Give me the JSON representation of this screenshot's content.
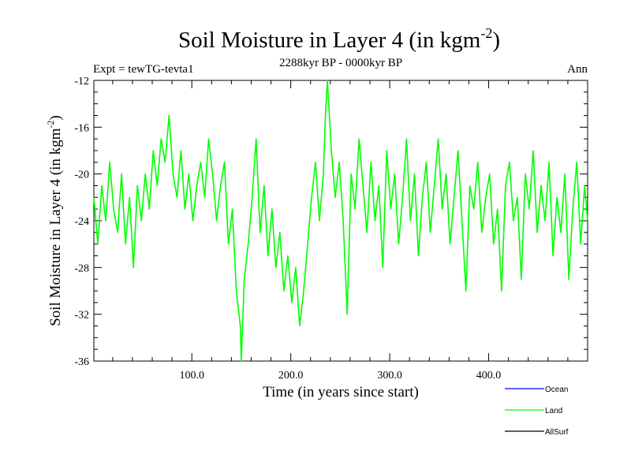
{
  "chart_data": {
    "type": "line",
    "title_main": "Soil Moisture in Layer 4 (in kgm",
    "title_sup": "-2",
    "title_close": ")",
    "subtitle_left": "Expt = tewTG-tevta1",
    "subtitle_center": "2288kyr BP - 0000kyr BP",
    "subtitle_right": "Ann",
    "xlabel": "Time (in years since start)",
    "ylabel_main": "Soil Moisture in Layer 4 (in kgm",
    "ylabel_sup": "-2",
    "ylabel_close": ")",
    "xlim": [
      1,
      500
    ],
    "ylim": [
      -36,
      -12
    ],
    "x_ticks": [
      100,
      200,
      300,
      400
    ],
    "x_tick_labels": [
      "100.0",
      "200.0",
      "300.0",
      "400.0"
    ],
    "y_ticks": [
      -12,
      -16,
      -20,
      -24,
      -28,
      -32,
      -36
    ],
    "y_tick_labels": [
      "-12",
      "-16",
      "-20",
      "-24",
      "-28",
      "-32",
      "-36"
    ],
    "legend": [
      {
        "name": "Ocean",
        "color": "#0000ff"
      },
      {
        "name": "Land",
        "color": "#00ff00"
      },
      {
        "name": "AllSurf",
        "color": "#000000"
      }
    ],
    "series": [
      {
        "name": "Land",
        "color": "#00ff00",
        "x": [
          1,
          5,
          9,
          13,
          17,
          21,
          25,
          29,
          33,
          37,
          41,
          45,
          49,
          53,
          57,
          61,
          65,
          69,
          73,
          77,
          81,
          85,
          89,
          93,
          97,
          101,
          105,
          109,
          113,
          117,
          121,
          125,
          129,
          133,
          137,
          141,
          145,
          149,
          150,
          153,
          157,
          161,
          165,
          169,
          173,
          177,
          181,
          185,
          189,
          193,
          197,
          201,
          205,
          209,
          213,
          217,
          221,
          225,
          229,
          233,
          235,
          237,
          241,
          245,
          249,
          253,
          257,
          261,
          265,
          269,
          273,
          277,
          281,
          285,
          289,
          293,
          297,
          301,
          305,
          309,
          313,
          317,
          321,
          325,
          329,
          333,
          337,
          341,
          345,
          349,
          353,
          357,
          361,
          365,
          369,
          373,
          377,
          381,
          385,
          389,
          393,
          397,
          401,
          405,
          409,
          413,
          417,
          421,
          425,
          429,
          433,
          437,
          441,
          445,
          449,
          453,
          457,
          461,
          465,
          469,
          473,
          477,
          481,
          485,
          489,
          493,
          497,
          500
        ],
        "values": [
          -22,
          -26,
          -21,
          -24,
          -19,
          -23,
          -25,
          -20,
          -26,
          -22,
          -28,
          -21,
          -24,
          -20,
          -23,
          -18,
          -21,
          -17,
          -19,
          -15,
          -20,
          -22,
          -18,
          -23,
          -20,
          -24,
          -21,
          -19,
          -22,
          -17,
          -20,
          -24,
          -21,
          -19,
          -26,
          -23,
          -30,
          -33,
          -36,
          -29,
          -26,
          -22,
          -17,
          -25,
          -21,
          -27,
          -23,
          -28,
          -25,
          -30,
          -27,
          -31,
          -28,
          -33,
          -30,
          -26,
          -22,
          -19,
          -24,
          -20,
          -15,
          -12,
          -18,
          -22,
          -19,
          -24,
          -32,
          -20,
          -23,
          -17,
          -21,
          -25,
          -19,
          -24,
          -21,
          -28,
          -18,
          -23,
          -20,
          -26,
          -22,
          -17,
          -24,
          -20,
          -27,
          -22,
          -19,
          -25,
          -21,
          -17,
          -23,
          -20,
          -26,
          -22,
          -18,
          -24,
          -30,
          -21,
          -23,
          -19,
          -25,
          -22,
          -20,
          -26,
          -23,
          -30,
          -21,
          -19,
          -24,
          -22,
          -29,
          -20,
          -23,
          -18,
          -25,
          -21,
          -24,
          -19,
          -27,
          -22,
          -25,
          -20,
          -29,
          -23,
          -19,
          -26,
          -21,
          -24
        ]
      }
    ]
  }
}
